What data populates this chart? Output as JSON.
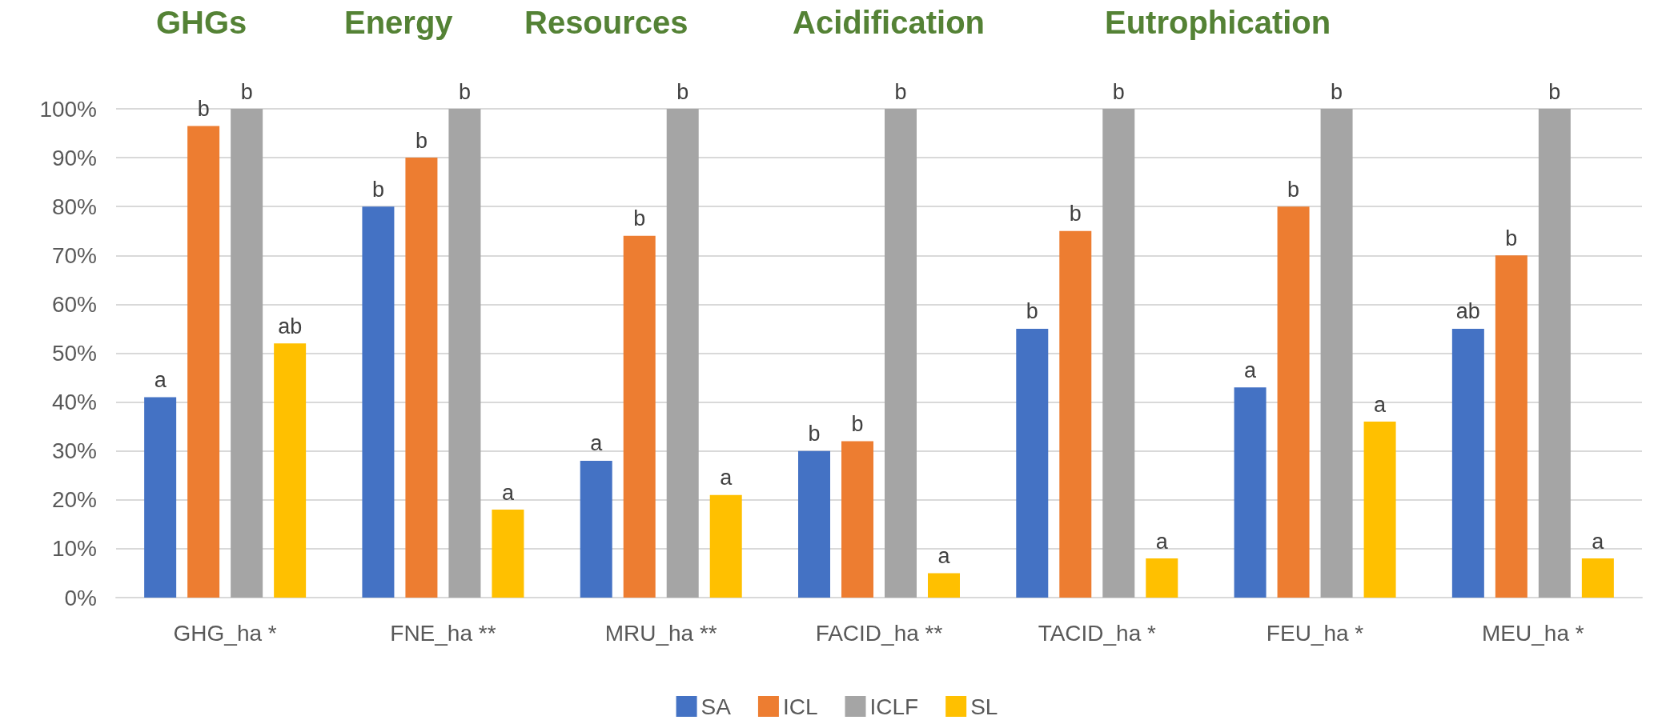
{
  "chart_data": {
    "type": "bar",
    "categories": [
      "GHG_ha *",
      "FNE_ha **",
      "MRU_ha **",
      "FACID_ha **",
      "TACID_ha *",
      "FEU_ha *",
      "MEU_ha *"
    ],
    "series": [
      {
        "name": "SA",
        "color": "#4472c4",
        "values": [
          41,
          80,
          28,
          30,
          55,
          43,
          55
        ],
        "value_labels": [
          "a",
          "b",
          "a",
          "b",
          "b",
          "a",
          "ab"
        ]
      },
      {
        "name": "ICL",
        "color": "#ed7d31",
        "values": [
          96.5,
          90,
          74,
          32,
          75,
          80,
          70
        ],
        "value_labels": [
          "b",
          "b",
          "b",
          "b",
          "b",
          "b",
          "b"
        ]
      },
      {
        "name": "ICLF",
        "color": "#a5a5a5",
        "values": [
          100,
          100,
          100,
          100,
          100,
          100,
          100
        ],
        "value_labels": [
          "b",
          "b",
          "b",
          "b",
          "b",
          "b",
          "b"
        ]
      },
      {
        "name": "SL",
        "color": "#ffc000",
        "values": [
          52,
          18,
          21,
          5,
          8,
          36,
          8
        ],
        "value_labels": [
          "ab",
          "a",
          "a",
          "a",
          "a",
          "a",
          "a"
        ]
      }
    ],
    "annotations": [
      "GHGs",
      "Energy",
      "Resources",
      "Acidification",
      "Eutrophication"
    ],
    "ylim": [
      0,
      100
    ],
    "yticks": [
      {
        "value": 0,
        "label": "0%"
      },
      {
        "value": 10,
        "label": "10%"
      },
      {
        "value": 20,
        "label": "20%"
      },
      {
        "value": 30,
        "label": "30%"
      },
      {
        "value": 40,
        "label": "40%"
      },
      {
        "value": 50,
        "label": "50%"
      },
      {
        "value": 60,
        "label": "60%"
      },
      {
        "value": 70,
        "label": "70%"
      },
      {
        "value": 80,
        "label": "80%"
      },
      {
        "value": 90,
        "label": "90%"
      },
      {
        "value": 100,
        "label": "100%"
      }
    ],
    "grid": "y",
    "legend": "bottom"
  }
}
